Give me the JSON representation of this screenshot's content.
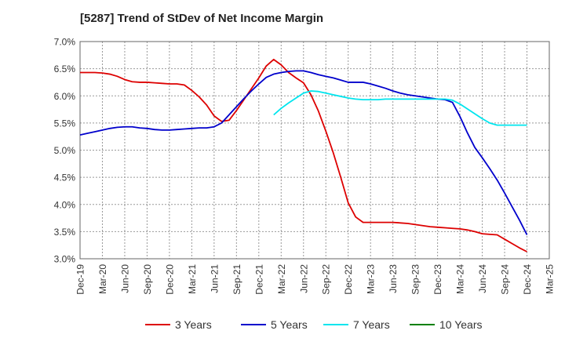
{
  "chart_data": {
    "type": "line",
    "title": "[5287]  Trend of StDev of Net Income Margin",
    "xlabel": "",
    "ylabel": "",
    "ylim": [
      3.0,
      7.0
    ],
    "yticks": [
      {
        "value": 3.0,
        "label": "3.0%"
      },
      {
        "value": 3.5,
        "label": "3.5%"
      },
      {
        "value": 4.0,
        "label": "4.0%"
      },
      {
        "value": 4.5,
        "label": "4.5%"
      },
      {
        "value": 5.0,
        "label": "5.0%"
      },
      {
        "value": 5.5,
        "label": "5.5%"
      },
      {
        "value": 6.0,
        "label": "6.0%"
      },
      {
        "value": 6.5,
        "label": "6.5%"
      },
      {
        "value": 7.0,
        "label": "7.0%"
      }
    ],
    "xticks": [
      "Dec-19",
      "Mar-20",
      "Jun-20",
      "Sep-20",
      "Dec-20",
      "Mar-21",
      "Jun-21",
      "Sep-21",
      "Dec-21",
      "Mar-22",
      "Jun-22",
      "Sep-22",
      "Dec-22",
      "Mar-23",
      "Jun-23",
      "Sep-23",
      "Dec-23",
      "Mar-24",
      "Jun-24",
      "Sep-24",
      "Dec-24",
      "Mar-25"
    ],
    "grid": true,
    "legend_position": "bottom",
    "series": [
      {
        "name": "3 Years",
        "color": "#dd0000",
        "points": [
          {
            "x": "Dec-19",
            "y": 6.43
          },
          {
            "x": "Jan-20",
            "y": 6.43
          },
          {
            "x": "Feb-20",
            "y": 6.43
          },
          {
            "x": "Mar-20",
            "y": 6.42
          },
          {
            "x": "Apr-20",
            "y": 6.4
          },
          {
            "x": "May-20",
            "y": 6.36
          },
          {
            "x": "Jun-20",
            "y": 6.3
          },
          {
            "x": "Jul-20",
            "y": 6.26
          },
          {
            "x": "Aug-20",
            "y": 6.25
          },
          {
            "x": "Sep-20",
            "y": 6.25
          },
          {
            "x": "Oct-20",
            "y": 6.24
          },
          {
            "x": "Nov-20",
            "y": 6.23
          },
          {
            "x": "Dec-20",
            "y": 6.22
          },
          {
            "x": "Jan-21",
            "y": 6.22
          },
          {
            "x": "Feb-21",
            "y": 6.2
          },
          {
            "x": "Mar-21",
            "y": 6.1
          },
          {
            "x": "Apr-21",
            "y": 5.98
          },
          {
            "x": "May-21",
            "y": 5.83
          },
          {
            "x": "Jun-21",
            "y": 5.63
          },
          {
            "x": "Jul-21",
            "y": 5.53
          },
          {
            "x": "Aug-21",
            "y": 5.55
          },
          {
            "x": "Sep-21",
            "y": 5.73
          },
          {
            "x": "Oct-21",
            "y": 5.93
          },
          {
            "x": "Nov-21",
            "y": 6.13
          },
          {
            "x": "Dec-21",
            "y": 6.33
          },
          {
            "x": "Jan-22",
            "y": 6.55
          },
          {
            "x": "Feb-22",
            "y": 6.67
          },
          {
            "x": "Mar-22",
            "y": 6.57
          },
          {
            "x": "Apr-22",
            "y": 6.43
          },
          {
            "x": "May-22",
            "y": 6.33
          },
          {
            "x": "Jun-22",
            "y": 6.24
          },
          {
            "x": "Jul-22",
            "y": 6.02
          },
          {
            "x": "Aug-22",
            "y": 5.72
          },
          {
            "x": "Sep-22",
            "y": 5.35
          },
          {
            "x": "Oct-22",
            "y": 4.95
          },
          {
            "x": "Nov-22",
            "y": 4.5
          },
          {
            "x": "Dec-22",
            "y": 4.03
          },
          {
            "x": "Jan-23",
            "y": 3.77
          },
          {
            "x": "Feb-23",
            "y": 3.67
          },
          {
            "x": "Mar-23",
            "y": 3.67
          },
          {
            "x": "Apr-23",
            "y": 3.67
          },
          {
            "x": "May-23",
            "y": 3.67
          },
          {
            "x": "Jun-23",
            "y": 3.67
          },
          {
            "x": "Jul-23",
            "y": 3.66
          },
          {
            "x": "Aug-23",
            "y": 3.65
          },
          {
            "x": "Sep-23",
            "y": 3.63
          },
          {
            "x": "Oct-23",
            "y": 3.61
          },
          {
            "x": "Nov-23",
            "y": 3.59
          },
          {
            "x": "Dec-23",
            "y": 3.58
          },
          {
            "x": "Jan-24",
            "y": 3.57
          },
          {
            "x": "Feb-24",
            "y": 3.56
          },
          {
            "x": "Mar-24",
            "y": 3.55
          },
          {
            "x": "Apr-24",
            "y": 3.53
          },
          {
            "x": "May-24",
            "y": 3.5
          },
          {
            "x": "Jun-24",
            "y": 3.46
          },
          {
            "x": "Jul-24",
            "y": 3.45
          },
          {
            "x": "Aug-24",
            "y": 3.44
          },
          {
            "x": "Sep-24",
            "y": 3.36
          },
          {
            "x": "Oct-24",
            "y": 3.28
          },
          {
            "x": "Nov-24",
            "y": 3.2
          },
          {
            "x": "Dec-24",
            "y": 3.13
          }
        ]
      },
      {
        "name": "5 Years",
        "color": "#0000cc",
        "points": [
          {
            "x": "Dec-19",
            "y": 5.28
          },
          {
            "x": "Jan-20",
            "y": 5.31
          },
          {
            "x": "Feb-20",
            "y": 5.34
          },
          {
            "x": "Mar-20",
            "y": 5.37
          },
          {
            "x": "Apr-20",
            "y": 5.4
          },
          {
            "x": "May-20",
            "y": 5.42
          },
          {
            "x": "Jun-20",
            "y": 5.43
          },
          {
            "x": "Jul-20",
            "y": 5.43
          },
          {
            "x": "Aug-20",
            "y": 5.41
          },
          {
            "x": "Sep-20",
            "y": 5.4
          },
          {
            "x": "Oct-20",
            "y": 5.38
          },
          {
            "x": "Nov-20",
            "y": 5.37
          },
          {
            "x": "Dec-20",
            "y": 5.37
          },
          {
            "x": "Jan-21",
            "y": 5.38
          },
          {
            "x": "Feb-21",
            "y": 5.39
          },
          {
            "x": "Mar-21",
            "y": 5.4
          },
          {
            "x": "Apr-21",
            "y": 5.41
          },
          {
            "x": "May-21",
            "y": 5.41
          },
          {
            "x": "Jun-21",
            "y": 5.43
          },
          {
            "x": "Jul-21",
            "y": 5.5
          },
          {
            "x": "Aug-21",
            "y": 5.65
          },
          {
            "x": "Sep-21",
            "y": 5.8
          },
          {
            "x": "Oct-21",
            "y": 5.95
          },
          {
            "x": "Nov-21",
            "y": 6.09
          },
          {
            "x": "Dec-21",
            "y": 6.22
          },
          {
            "x": "Jan-22",
            "y": 6.34
          },
          {
            "x": "Feb-22",
            "y": 6.4
          },
          {
            "x": "Mar-22",
            "y": 6.43
          },
          {
            "x": "Apr-22",
            "y": 6.45
          },
          {
            "x": "May-22",
            "y": 6.46
          },
          {
            "x": "Jun-22",
            "y": 6.46
          },
          {
            "x": "Jul-22",
            "y": 6.43
          },
          {
            "x": "Aug-22",
            "y": 6.39
          },
          {
            "x": "Sep-22",
            "y": 6.36
          },
          {
            "x": "Oct-22",
            "y": 6.33
          },
          {
            "x": "Nov-22",
            "y": 6.29
          },
          {
            "x": "Dec-22",
            "y": 6.25
          },
          {
            "x": "Jan-23",
            "y": 6.25
          },
          {
            "x": "Feb-23",
            "y": 6.25
          },
          {
            "x": "Mar-23",
            "y": 6.22
          },
          {
            "x": "Apr-23",
            "y": 6.18
          },
          {
            "x": "May-23",
            "y": 6.14
          },
          {
            "x": "Jun-23",
            "y": 6.09
          },
          {
            "x": "Jul-23",
            "y": 6.05
          },
          {
            "x": "Aug-23",
            "y": 6.02
          },
          {
            "x": "Sep-23",
            "y": 6.0
          },
          {
            "x": "Oct-23",
            "y": 5.98
          },
          {
            "x": "Nov-23",
            "y": 5.96
          },
          {
            "x": "Dec-23",
            "y": 5.94
          },
          {
            "x": "Jan-24",
            "y": 5.93
          },
          {
            "x": "Feb-24",
            "y": 5.88
          },
          {
            "x": "Mar-24",
            "y": 5.62
          },
          {
            "x": "Apr-24",
            "y": 5.32
          },
          {
            "x": "May-24",
            "y": 5.05
          },
          {
            "x": "Jun-24",
            "y": 4.86
          },
          {
            "x": "Jul-24",
            "y": 4.66
          },
          {
            "x": "Aug-24",
            "y": 4.45
          },
          {
            "x": "Sep-24",
            "y": 4.21
          },
          {
            "x": "Oct-24",
            "y": 3.96
          },
          {
            "x": "Nov-24",
            "y": 3.71
          },
          {
            "x": "Dec-24",
            "y": 3.44
          }
        ]
      },
      {
        "name": "7 Years",
        "color": "#00e5ee",
        "points": [
          {
            "x": "Feb-22",
            "y": 5.65
          },
          {
            "x": "Mar-22",
            "y": 5.77
          },
          {
            "x": "Apr-22",
            "y": 5.87
          },
          {
            "x": "May-22",
            "y": 5.96
          },
          {
            "x": "Jun-22",
            "y": 6.05
          },
          {
            "x": "Jul-22",
            "y": 6.09
          },
          {
            "x": "Aug-22",
            "y": 6.08
          },
          {
            "x": "Sep-22",
            "y": 6.05
          },
          {
            "x": "Oct-22",
            "y": 6.02
          },
          {
            "x": "Nov-22",
            "y": 5.99
          },
          {
            "x": "Dec-22",
            "y": 5.96
          },
          {
            "x": "Jan-23",
            "y": 5.94
          },
          {
            "x": "Feb-23",
            "y": 5.93
          },
          {
            "x": "Mar-23",
            "y": 5.93
          },
          {
            "x": "Apr-23",
            "y": 5.93
          },
          {
            "x": "May-23",
            "y": 5.94
          },
          {
            "x": "Jun-23",
            "y": 5.94
          },
          {
            "x": "Jul-23",
            "y": 5.94
          },
          {
            "x": "Aug-23",
            "y": 5.94
          },
          {
            "x": "Sep-23",
            "y": 5.94
          },
          {
            "x": "Oct-23",
            "y": 5.94
          },
          {
            "x": "Nov-23",
            "y": 5.94
          },
          {
            "x": "Dec-23",
            "y": 5.94
          },
          {
            "x": "Jan-24",
            "y": 5.94
          },
          {
            "x": "Feb-24",
            "y": 5.92
          },
          {
            "x": "Mar-24",
            "y": 5.85
          },
          {
            "x": "Apr-24",
            "y": 5.76
          },
          {
            "x": "May-24",
            "y": 5.67
          },
          {
            "x": "Jun-24",
            "y": 5.58
          },
          {
            "x": "Jul-24",
            "y": 5.5
          },
          {
            "x": "Aug-24",
            "y": 5.46
          },
          {
            "x": "Sep-24",
            "y": 5.46
          },
          {
            "x": "Oct-24",
            "y": 5.46
          },
          {
            "x": "Nov-24",
            "y": 5.46
          },
          {
            "x": "Dec-24",
            "y": 5.46
          }
        ]
      },
      {
        "name": "10 Years",
        "color": "#008000",
        "points": []
      }
    ]
  }
}
